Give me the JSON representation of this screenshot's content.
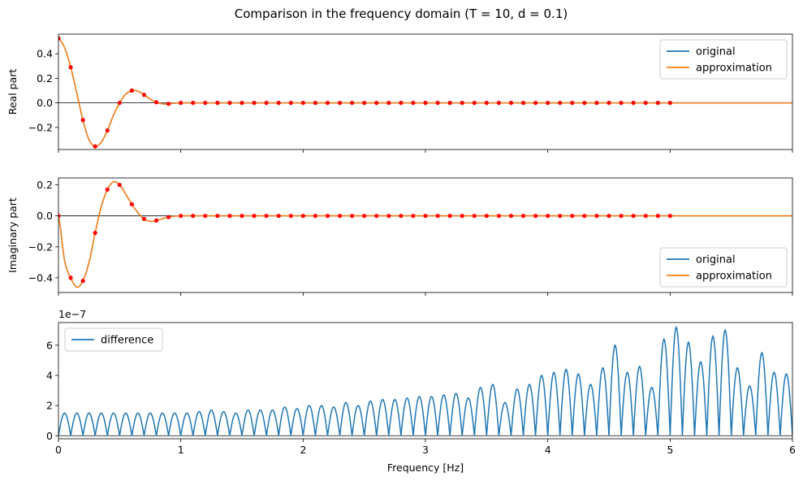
{
  "title": "Comparison in the frequency domain (T = 10, d = 0.1)",
  "colors": {
    "original": "#1f77b4",
    "approximation": "#ff7f0e",
    "samples": "#ff0000",
    "difference": "#1f77b4",
    "zero_line": "#000000"
  },
  "chart_data": [
    {
      "type": "line",
      "panel": "top",
      "ylabel": "Real part",
      "xlim": [
        0,
        6
      ],
      "ylim": [
        -0.38,
        0.56
      ],
      "yticks": [
        -0.2,
        0.0,
        0.2,
        0.4
      ],
      "ytick_labels": [
        "−0.2",
        "0.0",
        "0.2",
        "0.4"
      ],
      "legend": {
        "position": "top-right",
        "entries": [
          "original",
          "approximation"
        ]
      },
      "series": [
        {
          "name": "original",
          "x": [
            0,
            0.05,
            0.1,
            0.15,
            0.2,
            0.25,
            0.3,
            0.35,
            0.4,
            0.45,
            0.5,
            0.55,
            0.6,
            0.65,
            0.7,
            0.75,
            0.8,
            0.85,
            0.9,
            0.95,
            1.0,
            1.1,
            1.2,
            6.0
          ],
          "y": [
            0.525,
            0.45,
            0.29,
            0.08,
            -0.14,
            -0.3,
            -0.355,
            -0.32,
            -0.225,
            -0.1,
            0.0,
            0.07,
            0.1,
            0.095,
            0.065,
            0.03,
            0.005,
            -0.008,
            -0.008,
            -0.003,
            0.0,
            0.0,
            0.0,
            0.0
          ]
        },
        {
          "name": "approximation",
          "x": [
            0,
            0.05,
            0.1,
            0.15,
            0.2,
            0.25,
            0.3,
            0.35,
            0.4,
            0.45,
            0.5,
            0.55,
            0.6,
            0.65,
            0.7,
            0.75,
            0.8,
            0.85,
            0.9,
            0.95,
            1.0,
            1.1,
            1.2,
            6.0
          ],
          "y": [
            0.525,
            0.45,
            0.29,
            0.08,
            -0.14,
            -0.3,
            -0.355,
            -0.32,
            -0.225,
            -0.1,
            0.0,
            0.07,
            0.1,
            0.095,
            0.065,
            0.03,
            0.005,
            -0.008,
            -0.008,
            -0.003,
            0.0,
            0.0,
            0.0,
            0.0
          ]
        }
      ],
      "samples": {
        "x_start": 0,
        "x_step": 0.1,
        "count": 51,
        "y_head": [
          0.525,
          0.29,
          -0.14,
          -0.355,
          -0.225,
          0.0,
          0.1,
          0.065,
          0.005,
          -0.008,
          0.0
        ]
      }
    },
    {
      "type": "line",
      "panel": "middle",
      "ylabel": "Imaginary part",
      "xlim": [
        0,
        6
      ],
      "ylim": [
        -0.495,
        0.245
      ],
      "yticks": [
        -0.4,
        -0.2,
        0.0,
        0.2
      ],
      "ytick_labels": [
        "−0.4",
        "−0.2",
        "0.0",
        "0.2"
      ],
      "legend": {
        "position": "bottom-right",
        "entries": [
          "original",
          "approximation"
        ]
      },
      "series": [
        {
          "name": "original",
          "x": [
            0,
            0.05,
            0.1,
            0.15,
            0.2,
            0.25,
            0.3,
            0.35,
            0.4,
            0.45,
            0.5,
            0.55,
            0.6,
            0.65,
            0.7,
            0.75,
            0.8,
            0.85,
            0.9,
            0.95,
            1.0,
            1.1,
            6.0
          ],
          "y": [
            0.0,
            -0.29,
            -0.4,
            -0.46,
            -0.42,
            -0.3,
            -0.11,
            0.06,
            0.17,
            0.22,
            0.2,
            0.14,
            0.075,
            0.02,
            -0.02,
            -0.035,
            -0.03,
            -0.018,
            -0.008,
            -0.002,
            0.0,
            0.0,
            0.0
          ]
        },
        {
          "name": "approximation",
          "x": [
            0,
            0.05,
            0.1,
            0.15,
            0.2,
            0.25,
            0.3,
            0.35,
            0.4,
            0.45,
            0.5,
            0.55,
            0.6,
            0.65,
            0.7,
            0.75,
            0.8,
            0.85,
            0.9,
            0.95,
            1.0,
            1.1,
            6.0
          ],
          "y": [
            0.0,
            -0.29,
            -0.4,
            -0.46,
            -0.42,
            -0.3,
            -0.11,
            0.06,
            0.17,
            0.22,
            0.2,
            0.14,
            0.075,
            0.02,
            -0.02,
            -0.035,
            -0.03,
            -0.018,
            -0.008,
            -0.002,
            0.0,
            0.0,
            0.0
          ]
        }
      ],
      "samples": {
        "x_start": 0,
        "x_step": 0.1,
        "count": 51,
        "y_head": [
          0.0,
          -0.4,
          -0.42,
          -0.11,
          0.17,
          0.2,
          0.075,
          -0.02,
          -0.03,
          -0.008,
          0.0
        ]
      }
    },
    {
      "type": "line",
      "panel": "bottom",
      "xlabel": "Frequency [Hz]",
      "ylabel": "",
      "offset_text": "1e−7",
      "xlim": [
        0,
        6
      ],
      "ylim": [
        -0.2,
        7.5
      ],
      "xticks": [
        0,
        1,
        2,
        3,
        4,
        5,
        6
      ],
      "xtick_labels": [
        "0",
        "1",
        "2",
        "3",
        "4",
        "5",
        "6"
      ],
      "yticks": [
        0,
        2,
        4,
        6
      ],
      "ytick_labels": [
        "0",
        "2",
        "4",
        "6"
      ],
      "legend": {
        "position": "top-left",
        "entries": [
          "difference"
        ]
      },
      "series": [
        {
          "name": "difference",
          "lobe_width": 0.1,
          "lobe_peaks": [
            1.5,
            1.5,
            1.5,
            1.5,
            1.5,
            1.5,
            1.5,
            1.5,
            1.5,
            1.5,
            1.5,
            1.6,
            1.7,
            1.6,
            1.5,
            1.7,
            1.7,
            1.7,
            1.9,
            1.8,
            2.0,
            2.0,
            1.9,
            2.2,
            2.0,
            2.3,
            2.4,
            2.4,
            2.5,
            2.6,
            2.6,
            2.7,
            2.8,
            2.5,
            3.2,
            3.4,
            2.2,
            3.1,
            3.4,
            4.0,
            4.2,
            4.4,
            4.1,
            3.4,
            4.5,
            6.0,
            4.2,
            4.6,
            3.2,
            6.4,
            7.2,
            6.2,
            4.9,
            6.6,
            7.0,
            4.5,
            3.3,
            5.5,
            4.2,
            4.1
          ]
        }
      ]
    }
  ]
}
